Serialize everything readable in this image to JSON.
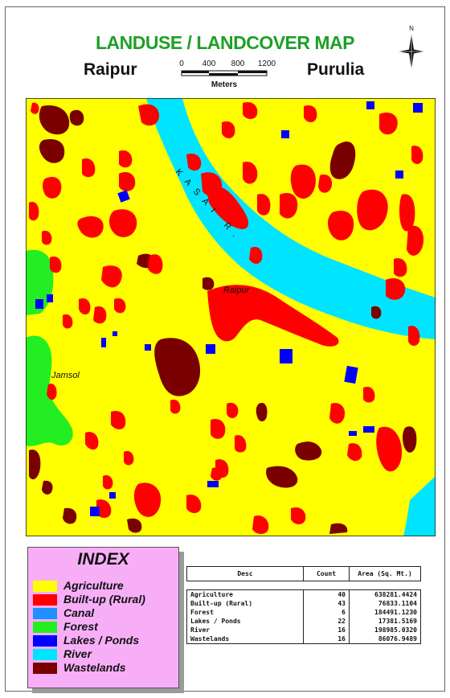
{
  "title": "LANDUSE / LANDCOVER MAP",
  "place_left": "Raipur",
  "place_right": "Purulia",
  "scale": {
    "ticks": [
      "0",
      "400",
      "800",
      "1200"
    ],
    "unit": "Meters"
  },
  "north_label": "N",
  "map_labels": {
    "river": "KASAI R.",
    "town_raipur": "Raipur",
    "town_jamsol": "Jamsol"
  },
  "colors": {
    "agriculture": "#ffff00",
    "builtup": "#ff0000",
    "canal": "#1e90ff",
    "forest": "#22ee22",
    "lakes": "#0000ff",
    "river": "#00e5ff",
    "wastelands": "#7a0000"
  },
  "index": {
    "title": "INDEX",
    "items": [
      {
        "label": "Agriculture",
        "color": "#ffff00"
      },
      {
        "label": "Built-up (Rural)",
        "color": "#ff0000"
      },
      {
        "label": "Canal",
        "color": "#1e90ff"
      },
      {
        "label": "Forest",
        "color": "#22ee22"
      },
      {
        "label": "Lakes / Ponds",
        "color": "#0000ff"
      },
      {
        "label": "River",
        "color": "#00e5ff"
      },
      {
        "label": "Wastelands",
        "color": "#7a0000"
      }
    ]
  },
  "table": {
    "headers": [
      "Desc",
      "Count",
      "Area (Sq. Mt.)"
    ],
    "rows": [
      {
        "desc": "Agriculture",
        "count": "40",
        "area": "638281.4424"
      },
      {
        "desc": "Built-up (Rural)",
        "count": "43",
        "area": "76833.1104"
      },
      {
        "desc": "Forest",
        "count": "6",
        "area": "184491.1230"
      },
      {
        "desc": "Lakes / Ponds",
        "count": "22",
        "area": "17381.5169"
      },
      {
        "desc": "River",
        "count": "16",
        "area": "198985.0320"
      },
      {
        "desc": "Wastelands",
        "count": "16",
        "area": "86076.9489"
      }
    ]
  }
}
